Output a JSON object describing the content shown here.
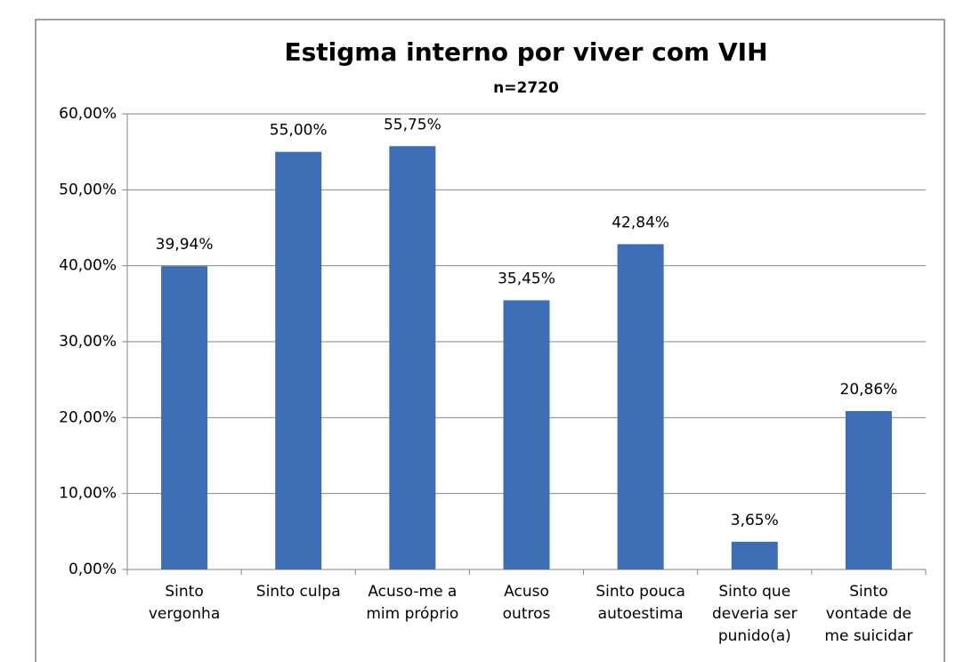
{
  "chart_data": {
    "type": "bar",
    "title": "Estigma interno por viver com VIH",
    "subtitle": "n=2720",
    "categories": [
      "Sinto\nvergonha",
      "Sinto culpa",
      "Acuso-me a\nmim próprio",
      "Acuso\noutros",
      "Sinto pouca\nautoestima",
      "Sinto que\ndeveria ser\npunido(a)",
      "Sinto\nvontade de\nme suicidar"
    ],
    "values": [
      39.94,
      55,
      55.75,
      35.45,
      42.84,
      3.65,
      20.86
    ],
    "value_labels": [
      "39,94%",
      "55,00%",
      "55,75%",
      "35,45%",
      "42,84%",
      "3,65%",
      "20,86%"
    ],
    "color": "#3d6db4",
    "ylim": [
      0,
      60
    ],
    "yticks": [
      {
        "value": 0,
        "label": "0,00%"
      },
      {
        "value": 10,
        "label": "10,00%"
      },
      {
        "value": 20,
        "label": "20,00%"
      },
      {
        "value": 30,
        "label": "30,00%"
      },
      {
        "value": 40,
        "label": "40,00%"
      },
      {
        "value": 50,
        "label": "50,00%"
      },
      {
        "value": 60,
        "label": "60,00%"
      }
    ],
    "grid": true
  }
}
